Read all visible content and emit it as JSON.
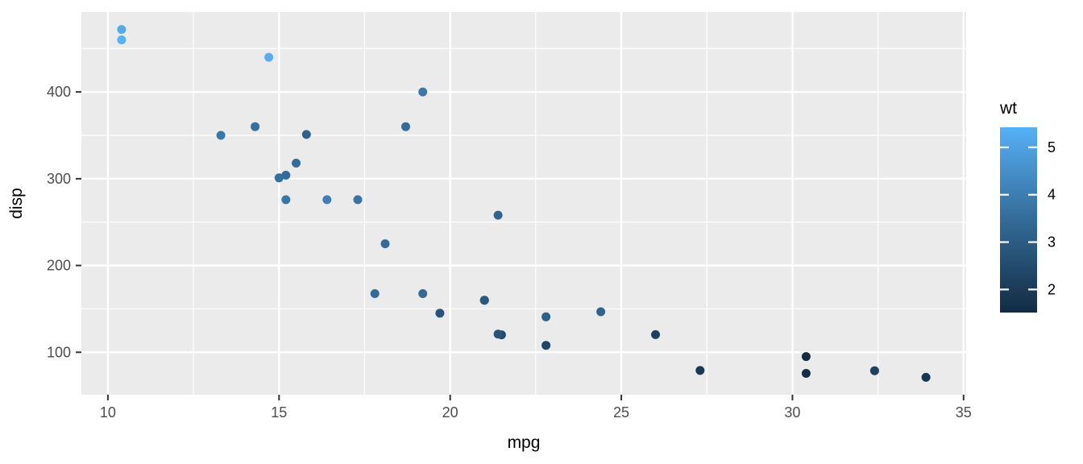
{
  "chart_data": {
    "type": "scatter",
    "title": "",
    "xlabel": "mpg",
    "ylabel": "disp",
    "xlim": [
      9.225,
      35.075
    ],
    "ylim": [
      51.06,
      492.04
    ],
    "x_ticks": [
      10,
      15,
      20,
      25,
      30,
      35
    ],
    "x_minor_ticks": [
      12.5,
      17.5,
      22.5,
      27.5,
      32.5
    ],
    "y_ticks": [
      100,
      200,
      300,
      400
    ],
    "y_minor_ticks": [
      150,
      250,
      350,
      450
    ],
    "grid": "on",
    "legend_position": "right",
    "points": [
      {
        "mpg": 21.0,
        "disp": 160.0,
        "wt": 2.62
      },
      {
        "mpg": 21.0,
        "disp": 160.0,
        "wt": 2.875
      },
      {
        "mpg": 22.8,
        "disp": 108.0,
        "wt": 2.32
      },
      {
        "mpg": 21.4,
        "disp": 258.0,
        "wt": 3.215
      },
      {
        "mpg": 18.7,
        "disp": 360.0,
        "wt": 3.44
      },
      {
        "mpg": 18.1,
        "disp": 225.0,
        "wt": 3.46
      },
      {
        "mpg": 14.3,
        "disp": 360.0,
        "wt": 3.57
      },
      {
        "mpg": 24.4,
        "disp": 146.7,
        "wt": 3.19
      },
      {
        "mpg": 22.8,
        "disp": 140.8,
        "wt": 3.15
      },
      {
        "mpg": 19.2,
        "disp": 167.6,
        "wt": 3.44
      },
      {
        "mpg": 17.8,
        "disp": 167.6,
        "wt": 3.44
      },
      {
        "mpg": 16.4,
        "disp": 275.8,
        "wt": 4.07
      },
      {
        "mpg": 17.3,
        "disp": 275.8,
        "wt": 3.73
      },
      {
        "mpg": 15.2,
        "disp": 275.8,
        "wt": 3.78
      },
      {
        "mpg": 10.4,
        "disp": 472.0,
        "wt": 5.25
      },
      {
        "mpg": 10.4,
        "disp": 460.0,
        "wt": 5.424
      },
      {
        "mpg": 14.7,
        "disp": 440.0,
        "wt": 5.345
      },
      {
        "mpg": 32.4,
        "disp": 78.7,
        "wt": 2.2
      },
      {
        "mpg": 30.4,
        "disp": 75.7,
        "wt": 1.615
      },
      {
        "mpg": 33.9,
        "disp": 71.1,
        "wt": 1.835
      },
      {
        "mpg": 21.5,
        "disp": 120.1,
        "wt": 2.465
      },
      {
        "mpg": 15.5,
        "disp": 318.0,
        "wt": 3.52
      },
      {
        "mpg": 15.2,
        "disp": 304.0,
        "wt": 3.435
      },
      {
        "mpg": 13.3,
        "disp": 350.0,
        "wt": 3.84
      },
      {
        "mpg": 19.2,
        "disp": 400.0,
        "wt": 3.845
      },
      {
        "mpg": 27.3,
        "disp": 79.0,
        "wt": 1.935
      },
      {
        "mpg": 26.0,
        "disp": 120.3,
        "wt": 2.14
      },
      {
        "mpg": 30.4,
        "disp": 95.1,
        "wt": 1.513
      },
      {
        "mpg": 15.8,
        "disp": 351.0,
        "wt": 3.17
      },
      {
        "mpg": 19.7,
        "disp": 145.0,
        "wt": 2.77
      },
      {
        "mpg": 15.0,
        "disp": 301.0,
        "wt": 3.57
      },
      {
        "mpg": 21.4,
        "disp": 121.0,
        "wt": 2.78
      }
    ],
    "legend": {
      "title": "wt",
      "ticks": [
        5,
        4,
        3,
        2
      ],
      "domain": [
        1.513,
        5.424
      ],
      "gradient_low": "#132B43",
      "gradient_high": "#56B1F7",
      "gradient_stops": [
        "#132B43",
        "#234B6D",
        "#346B98",
        "#458DC7",
        "#56B1F7"
      ]
    },
    "colors": {
      "panel_bg": "#EBEBEB",
      "grid": "#FFFFFF",
      "tick_label": "#4D4D4D",
      "axis_title": "#000000",
      "tick_mark": "#333333",
      "background": "#FFFFFF"
    }
  }
}
